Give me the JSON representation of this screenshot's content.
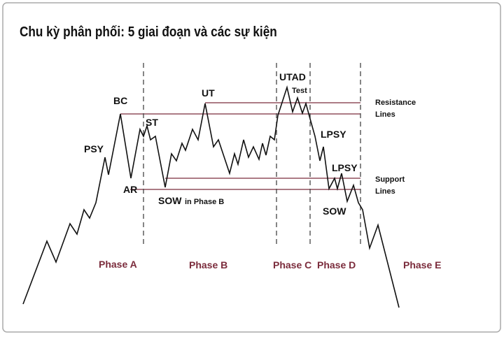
{
  "title": "Chu kỳ phân phối: 5 giai đoạn và các sự kiện",
  "events": {
    "psy": "PSY",
    "bc": "BC",
    "ar": "AR",
    "st": "ST",
    "ut": "UT",
    "sow_b": "SOW",
    "sow_b_note": "in Phase B",
    "utad": "UTAD",
    "test": "Test",
    "lpsy_1": "LPSY",
    "lpsy_2": "LPSY",
    "sow": "SOW"
  },
  "levels": {
    "resistance": "Resistance",
    "resistance_lines": "Lines",
    "support": "Support",
    "support_lines": "Lines"
  },
  "phases": [
    "Phase A",
    "Phase B",
    "Phase C",
    "Phase D",
    "Phase E"
  ]
}
